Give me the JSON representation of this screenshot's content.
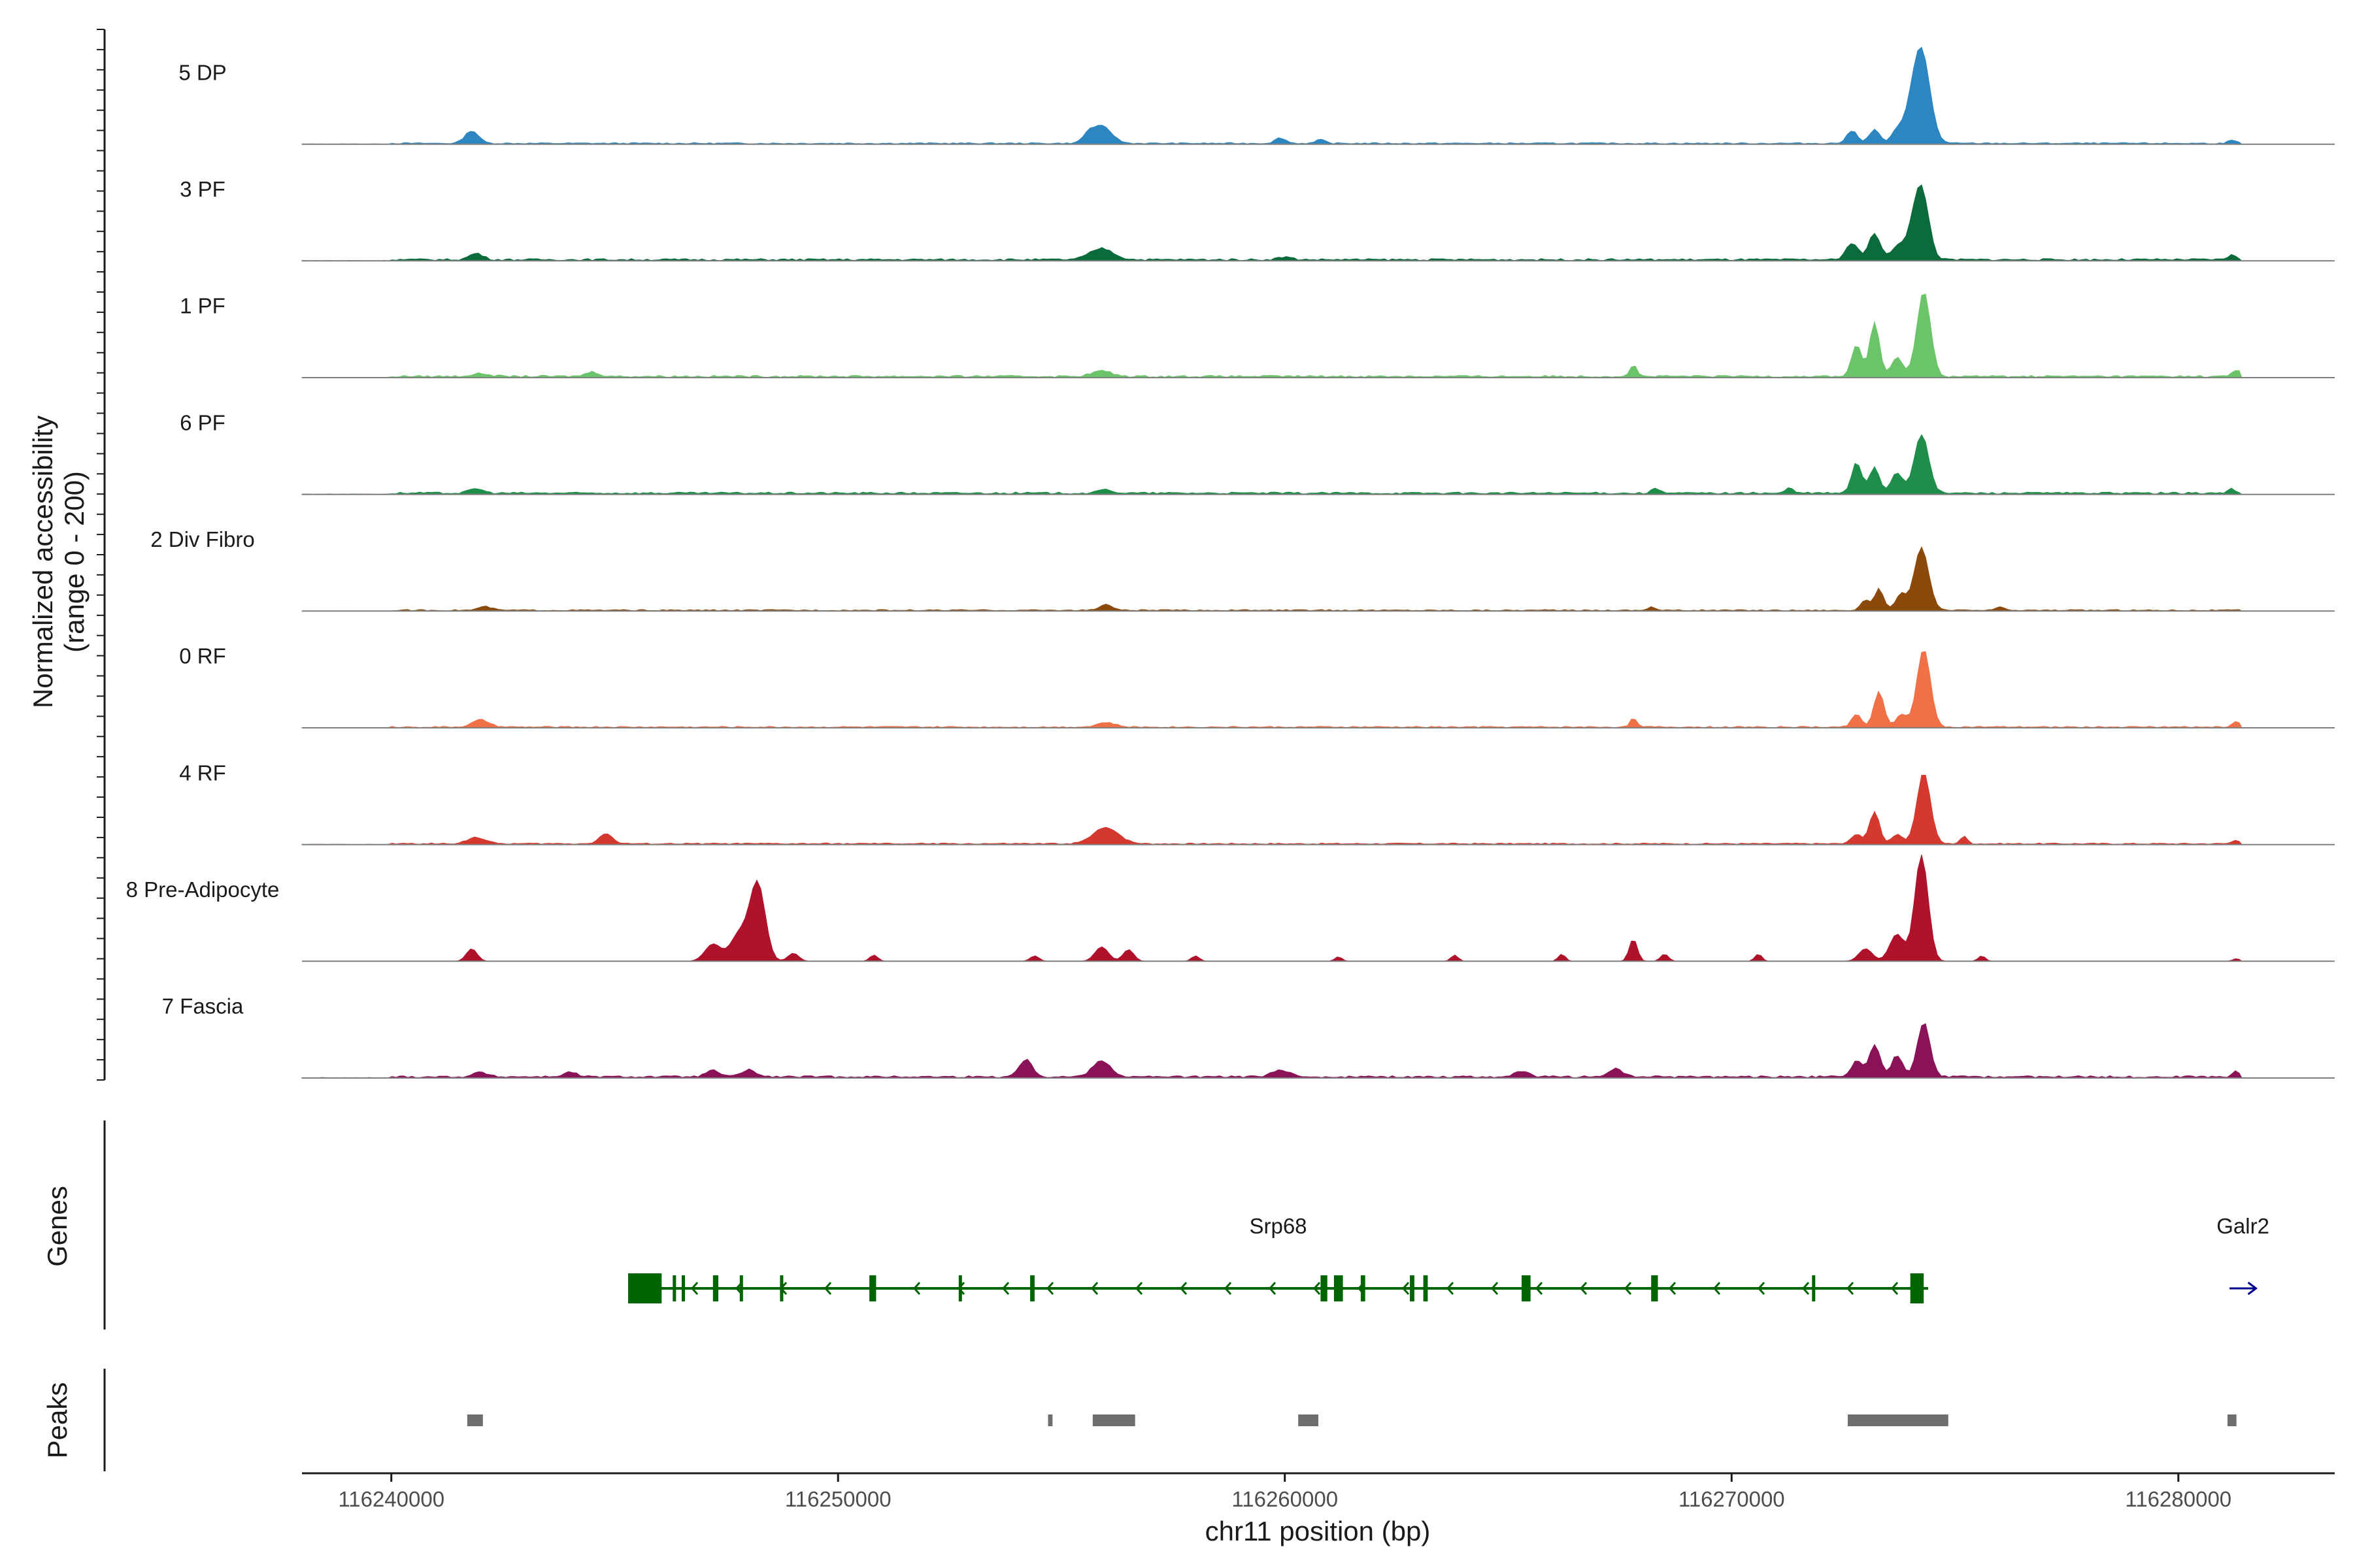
{
  "chart_data": {
    "type": "area",
    "title": "",
    "ylabel": "Normalized accessibility",
    "ylabel_range": "(range 0 - 200)",
    "xlabel": "chr11 position (bp)",
    "xlim": [
      116238000,
      116283500
    ],
    "ylim": [
      0,
      200
    ],
    "x_ticks": [
      116240000,
      116250000,
      116260000,
      116270000,
      116280000
    ],
    "x_tick_labels": [
      "116240000",
      "116250000",
      "116260000",
      "116270000",
      "116280000"
    ],
    "tracks": [
      {
        "name": "5 DP",
        "color": "#2E86C1",
        "baseline": 2,
        "peaks": [
          [
            116241800,
            28,
            150
          ],
          [
            116255900,
            38,
            220
          ],
          [
            116255600,
            15,
            120
          ],
          [
            116259900,
            12,
            120
          ],
          [
            116260800,
            8,
            100
          ],
          [
            116272700,
            28,
            120
          ],
          [
            116273200,
            30,
            120
          ],
          [
            116273700,
            26,
            120
          ],
          [
            116274250,
            200,
            190
          ],
          [
            116274000,
            40,
            160
          ],
          [
            116281200,
            6,
            100
          ]
        ]
      },
      {
        "name": "3 PF",
        "color": "#0B6B3A",
        "baseline": 3,
        "peaks": [
          [
            116241900,
            14,
            150
          ],
          [
            116255900,
            25,
            260
          ],
          [
            116260000,
            6,
            150
          ],
          [
            116272700,
            38,
            130
          ],
          [
            116273200,
            58,
            130
          ],
          [
            116273700,
            28,
            120
          ],
          [
            116274250,
            155,
            160
          ],
          [
            116274000,
            40,
            150
          ],
          [
            116281200,
            10,
            100
          ]
        ]
      },
      {
        "name": "1 PF",
        "color": "#6CC46A",
        "baseline": 3,
        "peaks": [
          [
            116242000,
            6,
            200
          ],
          [
            116244500,
            10,
            150
          ],
          [
            116255900,
            12,
            220
          ],
          [
            116267800,
            25,
            80
          ],
          [
            116272800,
            70,
            110
          ],
          [
            116273200,
            118,
            110
          ],
          [
            116273700,
            42,
            120
          ],
          [
            116274300,
            188,
            150
          ],
          [
            116281300,
            14,
            90
          ]
        ]
      },
      {
        "name": "6 PF",
        "color": "#1E8E4A",
        "baseline": 3,
        "peaks": [
          [
            116241900,
            10,
            150
          ],
          [
            116256000,
            8,
            150
          ],
          [
            116268300,
            12,
            80
          ],
          [
            116271300,
            12,
            80
          ],
          [
            116272800,
            68,
            110
          ],
          [
            116273200,
            58,
            110
          ],
          [
            116273700,
            45,
            130
          ],
          [
            116274250,
            130,
            160
          ],
          [
            116281200,
            10,
            80
          ]
        ]
      },
      {
        "name": "2 Div Fibro",
        "color": "#8B4A0B",
        "baseline": 2,
        "peaks": [
          [
            116242100,
            8,
            150
          ],
          [
            116256000,
            12,
            150
          ],
          [
            116268200,
            8,
            80
          ],
          [
            116273000,
            22,
            100
          ],
          [
            116273300,
            48,
            100
          ],
          [
            116273800,
            35,
            120
          ],
          [
            116274250,
            138,
            160
          ],
          [
            116276000,
            8,
            80
          ]
        ]
      },
      {
        "name": "0 RF",
        "color": "#F07047",
        "baseline": 2,
        "peaks": [
          [
            116242000,
            16,
            180
          ],
          [
            116256000,
            10,
            200
          ],
          [
            116267800,
            22,
            70
          ],
          [
            116272800,
            28,
            110
          ],
          [
            116273300,
            80,
            110
          ],
          [
            116273800,
            28,
            120
          ],
          [
            116274300,
            172,
            150
          ],
          [
            116281300,
            12,
            90
          ]
        ]
      },
      {
        "name": "4 RF",
        "color": "#D5382E",
        "baseline": 2,
        "peaks": [
          [
            116241900,
            14,
            200
          ],
          [
            116244800,
            22,
            150
          ],
          [
            116256000,
            36,
            280
          ],
          [
            116272800,
            22,
            110
          ],
          [
            116273200,
            72,
            110
          ],
          [
            116273700,
            20,
            120
          ],
          [
            116274300,
            158,
            150
          ],
          [
            116275200,
            16,
            80
          ],
          [
            116281300,
            8,
            90
          ]
        ]
      },
      {
        "name": "8 Pre-Adipocyte",
        "color": "#B0122C",
        "baseline": 0,
        "peaks": [
          [
            116241800,
            28,
            120
          ],
          [
            116247200,
            38,
            180
          ],
          [
            116247800,
            62,
            200
          ],
          [
            116248200,
            170,
            170
          ],
          [
            116249000,
            18,
            120
          ],
          [
            116250800,
            14,
            90
          ],
          [
            116254400,
            12,
            100
          ],
          [
            116255900,
            32,
            150
          ],
          [
            116256500,
            26,
            120
          ],
          [
            116258000,
            12,
            90
          ],
          [
            116261200,
            10,
            80
          ],
          [
            116263800,
            14,
            80
          ],
          [
            116266200,
            16,
            80
          ],
          [
            116267800,
            50,
            90
          ],
          [
            116268500,
            16,
            90
          ],
          [
            116270600,
            16,
            80
          ],
          [
            116273000,
            28,
            150
          ],
          [
            116273700,
            60,
            160
          ],
          [
            116274250,
            235,
            150
          ],
          [
            116275600,
            12,
            80
          ],
          [
            116281300,
            6,
            80
          ]
        ]
      },
      {
        "name": "7 Fascia",
        "color": "#8A1258",
        "baseline": 3,
        "peaks": [
          [
            116242000,
            10,
            150
          ],
          [
            116244000,
            10,
            150
          ],
          [
            116247200,
            14,
            150
          ],
          [
            116248000,
            16,
            150
          ],
          [
            116254200,
            38,
            150
          ],
          [
            116255900,
            36,
            200
          ],
          [
            116259900,
            14,
            200
          ],
          [
            116265300,
            12,
            150
          ],
          [
            116267400,
            18,
            150
          ],
          [
            116272800,
            35,
            120
          ],
          [
            116273200,
            72,
            120
          ],
          [
            116273700,
            48,
            120
          ],
          [
            116274300,
            120,
            140
          ],
          [
            116281300,
            12,
            90
          ]
        ]
      }
    ],
    "genes": [
      {
        "name": "Srp68",
        "strand": "-",
        "start": 116245300,
        "end": 116274400,
        "color": "#006400",
        "exons": [
          [
            116245300,
            116246050
          ],
          [
            116246300,
            116246350
          ],
          [
            116246500,
            116246560
          ],
          [
            116247200,
            116247320
          ],
          [
            116247800,
            116247860
          ],
          [
            116248700,
            116248760
          ],
          [
            116250700,
            116250850
          ],
          [
            116252700,
            116252760
          ],
          [
            116254300,
            116254400
          ],
          [
            116260800,
            116260950
          ],
          [
            116261100,
            116261300
          ],
          [
            116261700,
            116261800
          ],
          [
            116262800,
            116262900
          ],
          [
            116263100,
            116263200
          ],
          [
            116265300,
            116265500
          ],
          [
            116268200,
            116268350
          ],
          [
            116271800,
            116271850
          ],
          [
            116274000,
            116274300
          ]
        ]
      },
      {
        "name": "Galr2",
        "strand": "+",
        "start": 116281000,
        "end": 116281300,
        "color": "#00008B",
        "exons": []
      }
    ],
    "peaks_track": [
      [
        116241700,
        116242050
      ],
      [
        116254700,
        116254800
      ],
      [
        116255700,
        116256650
      ],
      [
        116260300,
        116260750
      ],
      [
        116272600,
        116274850
      ],
      [
        116281100,
        116281300
      ]
    ]
  },
  "labels": {
    "ylabel_line1": "Normalized accessibility",
    "ylabel_line2": "(range 0 - 200)",
    "genes_track": "Genes",
    "peaks_track": "Peaks",
    "xlabel": "chr11 position (bp)"
  }
}
